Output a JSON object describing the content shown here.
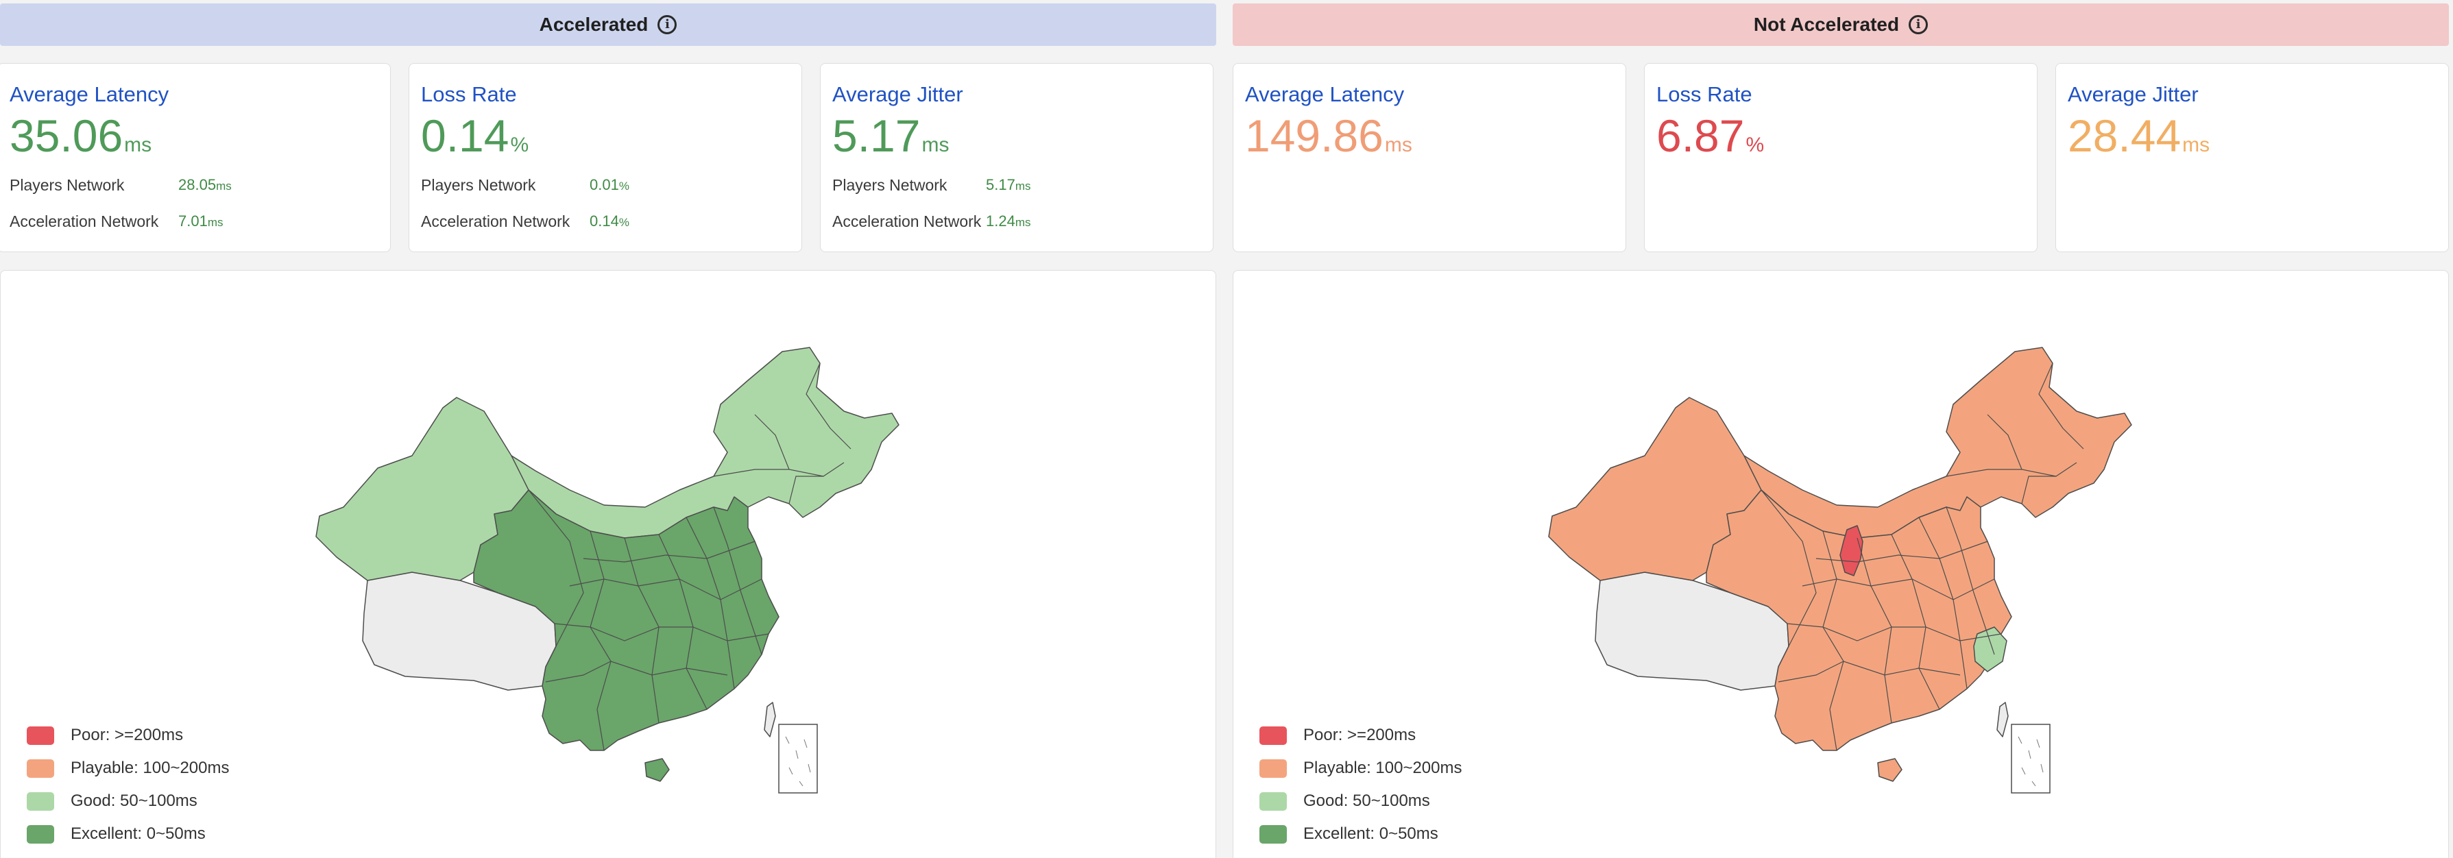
{
  "colors": {
    "poor": "#e8545c",
    "playable": "#f3a47e",
    "good": "#acd8a7",
    "excellent": "#6aa56a",
    "nodata": "#ececec",
    "accent_title": "#2052c4"
  },
  "accelerated": {
    "banner": "Accelerated",
    "cards": [
      {
        "title": "Average Latency",
        "value": "35.06",
        "unit": "ms",
        "rows": [
          {
            "label": "Players Network",
            "value": "28.05",
            "unit": "ms"
          },
          {
            "label": "Acceleration Network",
            "value": "7.01",
            "unit": "ms"
          }
        ]
      },
      {
        "title": "Loss Rate",
        "value": "0.14",
        "unit": "%",
        "rows": [
          {
            "label": "Players Network",
            "value": "0.01",
            "unit": "%"
          },
          {
            "label": "Acceleration Network",
            "value": "0.14",
            "unit": "%"
          }
        ]
      },
      {
        "title": "Average Jitter",
        "value": "5.17",
        "unit": "ms",
        "rows": [
          {
            "label": "Players Network",
            "value": "5.17",
            "unit": "ms"
          },
          {
            "label": "Acceleration Network",
            "value": "1.24",
            "unit": "ms"
          }
        ]
      }
    ]
  },
  "not_accelerated": {
    "banner": "Not Accelerated",
    "cards": [
      {
        "title": "Average Latency",
        "value": "149.86",
        "unit": "ms"
      },
      {
        "title": "Loss Rate",
        "value": "6.87",
        "unit": "%"
      },
      {
        "title": "Average Jitter",
        "value": "28.44",
        "unit": "ms"
      }
    ]
  },
  "legend": [
    {
      "label": "Poor: >=200ms",
      "color": "#e8545c"
    },
    {
      "label": "Playable: 100~200ms",
      "color": "#f3a47e"
    },
    {
      "label": "Good: 50~100ms",
      "color": "#acd8a7"
    },
    {
      "label": "Excellent: 0~50ms",
      "color": "#6aa56a"
    }
  ]
}
